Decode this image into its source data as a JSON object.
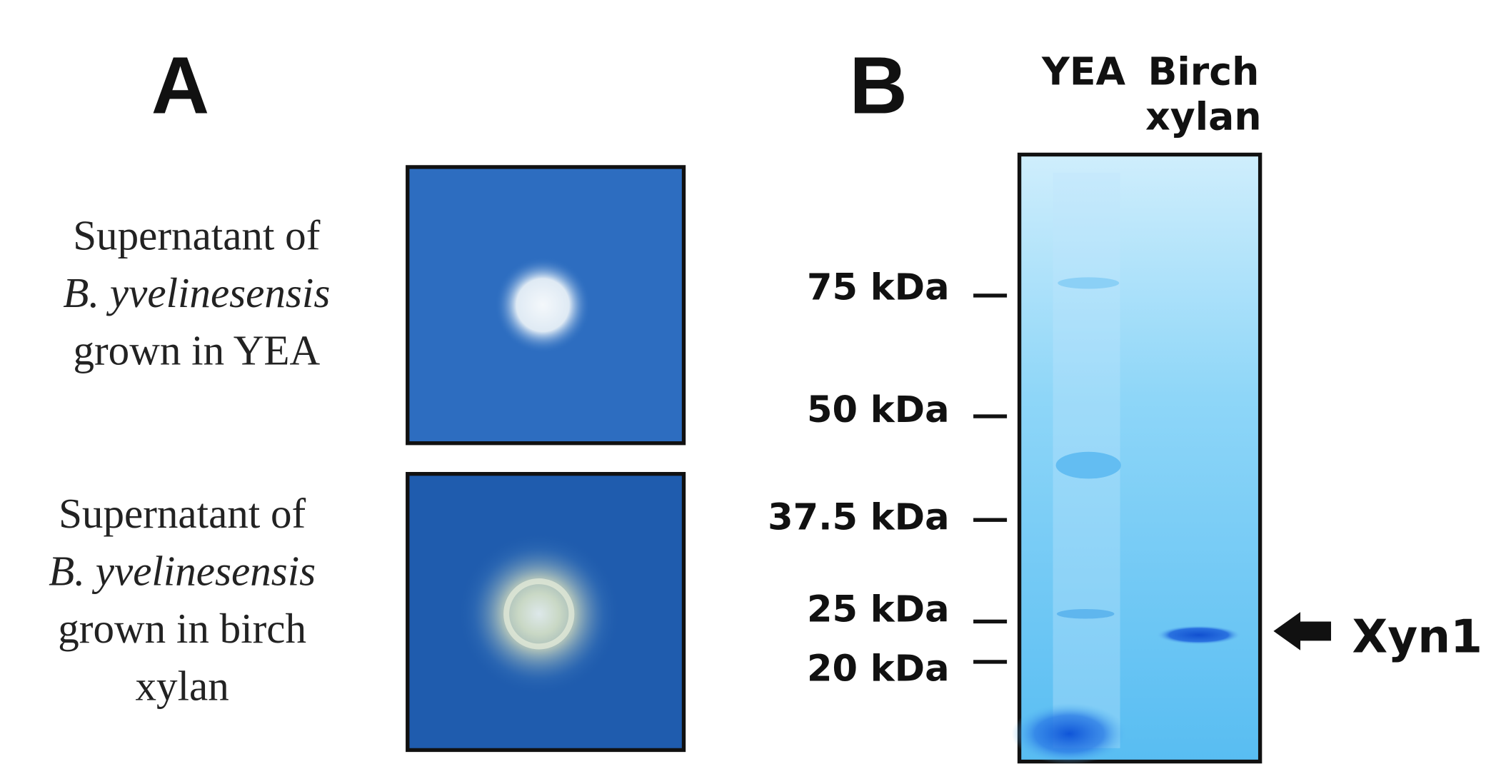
{
  "panel_a": {
    "label": "A",
    "rows": [
      {
        "caption": [
          "Supernatant of",
          "B. yvelinesensis",
          "grown in YEA"
        ]
      },
      {
        "caption": [
          "Supernatant of",
          "B. yvelinesensis",
          "grown in birch",
          "xylan"
        ]
      }
    ]
  },
  "panel_b": {
    "label": "B",
    "lanes": [
      [
        "YEA"
      ],
      [
        "Birch",
        "xylan"
      ]
    ],
    "markers": [
      "75 kDa",
      "50 kDa",
      "37.5 kDa",
      "25 kDa",
      "20 kDa"
    ],
    "annotation": "Xyn1"
  }
}
